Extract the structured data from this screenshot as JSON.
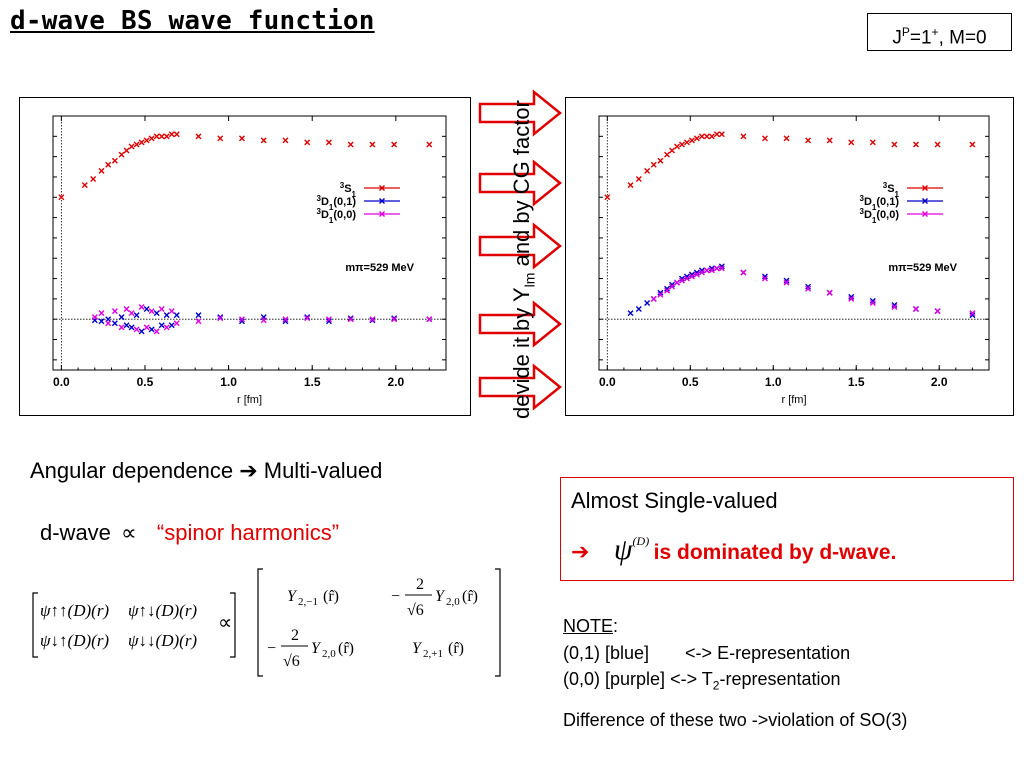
{
  "title": "d-wave BS wave function",
  "jp_label": {
    "base": "J",
    "sup1": "P",
    "mid": "=1",
    "sup2": "+",
    "rest": ", M=0"
  },
  "side_label": {
    "part1": "devide it by Y",
    "sub": "lm",
    "part2": " and by CG factor"
  },
  "angular": {
    "text": "Angular dependence",
    "arrow": "➔",
    "result": "Multi-valued"
  },
  "dwave": {
    "text": "d-wave",
    "prop": "∝",
    "spinor": "“spinor harmonics”"
  },
  "single_box": {
    "line1": "Almost Single-valued",
    "arrow": "➔",
    "psi": "ψ",
    "psi_sup": "(D)",
    "dominated": "is dominated by d-wave."
  },
  "note": {
    "heading": "NOTE",
    "colon": ":",
    "line1": {
      "a": "(0,1) [blue]",
      "arrow": "<->",
      "b": "E-representation"
    },
    "line2": {
      "a": "(0,0) [purple]",
      "arrow": "<->",
      "b": "T",
      "b_sub": "2",
      "c": "-representation"
    },
    "diff": {
      "a": "Difference of these two ",
      "arrow": "->",
      "b": "violation of SO(3)"
    }
  },
  "matrix_left": [
    [
      "ψ↑↑(D)(r)",
      "ψ↑↓(D)(r)"
    ],
    [
      "ψ↓↑(D)(r)",
      "ψ↓↓(D)(r)"
    ]
  ],
  "matrix_right": {
    "y_2m1": "Y",
    "sub_2m1": "2,−1",
    "r_hat": "(r̂)",
    "neg": "−",
    "two": "2",
    "root6": "√6",
    "sub_20": "2,0",
    "sub_2p1": "2,+1"
  },
  "colors": {
    "red": "#e00000",
    "blue": "#0000cc",
    "purple": "#e000e0",
    "s_red": "#dd0000"
  },
  "chart_data": [
    {
      "type": "scatter",
      "title": "",
      "xlabel": "r [fm]",
      "ylabel": "",
      "xlim": [
        -0.05,
        2.3
      ],
      "ylim": [
        -0.25,
        1.0
      ],
      "x_ticks": [
        "0.0",
        "0.5",
        "1.0",
        "1.5",
        "2.0"
      ],
      "annotation": "mπ=529 MeV",
      "legend_position": "right",
      "series": [
        {
          "name": "3S1",
          "legend": [
            "3",
            "S",
            "1"
          ],
          "color": "#dd0000",
          "x": [
            0.0,
            0.14,
            0.19,
            0.24,
            0.28,
            0.32,
            0.36,
            0.39,
            0.42,
            0.45,
            0.48,
            0.51,
            0.54,
            0.57,
            0.6,
            0.63,
            0.66,
            0.69,
            0.82,
            0.95,
            1.08,
            1.21,
            1.34,
            1.47,
            1.6,
            1.73,
            1.86,
            1.99,
            2.2
          ],
          "y": [
            0.6,
            0.66,
            0.69,
            0.73,
            0.76,
            0.78,
            0.81,
            0.83,
            0.85,
            0.86,
            0.87,
            0.88,
            0.89,
            0.9,
            0.9,
            0.9,
            0.91,
            0.91,
            0.9,
            0.89,
            0.89,
            0.88,
            0.88,
            0.87,
            0.87,
            0.86,
            0.86,
            0.86,
            0.86
          ]
        },
        {
          "name": "3D1(0,1)",
          "legend": [
            "3",
            "D",
            "1",
            "(0,1)"
          ],
          "color": "#0000cc",
          "x": [
            0.2,
            0.24,
            0.28,
            0.32,
            0.36,
            0.39,
            0.42,
            0.45,
            0.48,
            0.51,
            0.54,
            0.57,
            0.6,
            0.63,
            0.66,
            0.69,
            0.82,
            0.95,
            1.08,
            1.21,
            1.34,
            1.47,
            1.6,
            1.73,
            1.86,
            1.99,
            2.2
          ],
          "y": [
            -0.005,
            -0.01,
            0.0,
            -0.02,
            0.01,
            -0.03,
            -0.04,
            0.02,
            -0.06,
            0.05,
            -0.05,
            0.03,
            -0.03,
            0.02,
            -0.03,
            0.02,
            0.02,
            0.01,
            -0.01,
            0.01,
            -0.01,
            0.01,
            -0.01,
            0.005,
            -0.005,
            0.005,
            0.0
          ]
        },
        {
          "name": "3D1(0,0)",
          "legend": [
            "3",
            "D",
            "1",
            "(0,0)"
          ],
          "color": "#e000e0",
          "x": [
            0.2,
            0.24,
            0.28,
            0.32,
            0.36,
            0.39,
            0.42,
            0.45,
            0.48,
            0.51,
            0.54,
            0.57,
            0.6,
            0.63,
            0.66,
            0.69,
            0.82,
            0.95,
            1.08,
            1.21,
            1.34,
            1.47,
            1.6,
            1.73,
            1.86,
            1.99,
            2.2
          ],
          "y": [
            0.01,
            0.03,
            -0.02,
            0.04,
            -0.04,
            0.05,
            0.03,
            -0.05,
            0.06,
            -0.04,
            0.04,
            -0.06,
            0.05,
            -0.04,
            0.04,
            -0.02,
            -0.01,
            0.005,
            0.0,
            -0.005,
            0.0,
            0.005,
            0.0,
            0.0,
            0.0,
            0.0,
            0.0
          ]
        }
      ]
    },
    {
      "type": "scatter",
      "title": "",
      "xlabel": "r [fm]",
      "ylabel": "",
      "xlim": [
        -0.05,
        2.3
      ],
      "ylim": [
        -0.25,
        1.0
      ],
      "x_ticks": [
        "0.0",
        "0.5",
        "1.0",
        "1.5",
        "2.0"
      ],
      "annotation": "mπ=529 MeV",
      "legend_position": "right",
      "series": [
        {
          "name": "3S1",
          "legend": [
            "3",
            "S",
            "1"
          ],
          "color": "#dd0000",
          "x": [
            0.0,
            0.14,
            0.19,
            0.24,
            0.28,
            0.32,
            0.36,
            0.39,
            0.42,
            0.45,
            0.48,
            0.51,
            0.54,
            0.57,
            0.6,
            0.63,
            0.66,
            0.69,
            0.82,
            0.95,
            1.08,
            1.21,
            1.34,
            1.47,
            1.6,
            1.73,
            1.86,
            1.99,
            2.2
          ],
          "y": [
            0.6,
            0.66,
            0.69,
            0.73,
            0.76,
            0.78,
            0.81,
            0.83,
            0.85,
            0.86,
            0.87,
            0.88,
            0.89,
            0.9,
            0.9,
            0.9,
            0.91,
            0.91,
            0.9,
            0.89,
            0.89,
            0.88,
            0.88,
            0.87,
            0.87,
            0.86,
            0.86,
            0.86,
            0.86
          ]
        },
        {
          "name": "3D1(0,1)",
          "legend": [
            "3",
            "D",
            "1",
            "(0,1)"
          ],
          "color": "#0000cc",
          "x": [
            0.14,
            0.19,
            0.24,
            0.28,
            0.32,
            0.36,
            0.39,
            0.42,
            0.45,
            0.48,
            0.51,
            0.54,
            0.57,
            0.6,
            0.63,
            0.66,
            0.69,
            0.82,
            0.95,
            1.08,
            1.21,
            1.34,
            1.47,
            1.6,
            1.73,
            1.86,
            1.99,
            2.2
          ],
          "y": [
            0.03,
            0.05,
            0.08,
            0.1,
            0.13,
            0.15,
            0.17,
            0.18,
            0.2,
            0.21,
            0.22,
            0.23,
            0.24,
            0.24,
            0.25,
            0.25,
            0.26,
            0.23,
            0.21,
            0.19,
            0.16,
            0.13,
            0.11,
            0.09,
            0.07,
            0.05,
            0.04,
            0.02
          ]
        },
        {
          "name": "3D1(0,0)",
          "legend": [
            "3",
            "D",
            "1",
            "(0,0)"
          ],
          "color": "#e000e0",
          "x": [
            0.28,
            0.32,
            0.36,
            0.39,
            0.42,
            0.45,
            0.48,
            0.51,
            0.54,
            0.57,
            0.6,
            0.63,
            0.66,
            0.69,
            0.82,
            0.95,
            1.08,
            1.21,
            1.34,
            1.47,
            1.6,
            1.73,
            1.86,
            1.99,
            2.2
          ],
          "y": [
            0.1,
            0.12,
            0.14,
            0.16,
            0.18,
            0.19,
            0.2,
            0.21,
            0.22,
            0.23,
            0.24,
            0.24,
            0.25,
            0.25,
            0.23,
            0.2,
            0.18,
            0.15,
            0.13,
            0.1,
            0.08,
            0.06,
            0.05,
            0.04,
            0.03
          ]
        }
      ]
    }
  ]
}
